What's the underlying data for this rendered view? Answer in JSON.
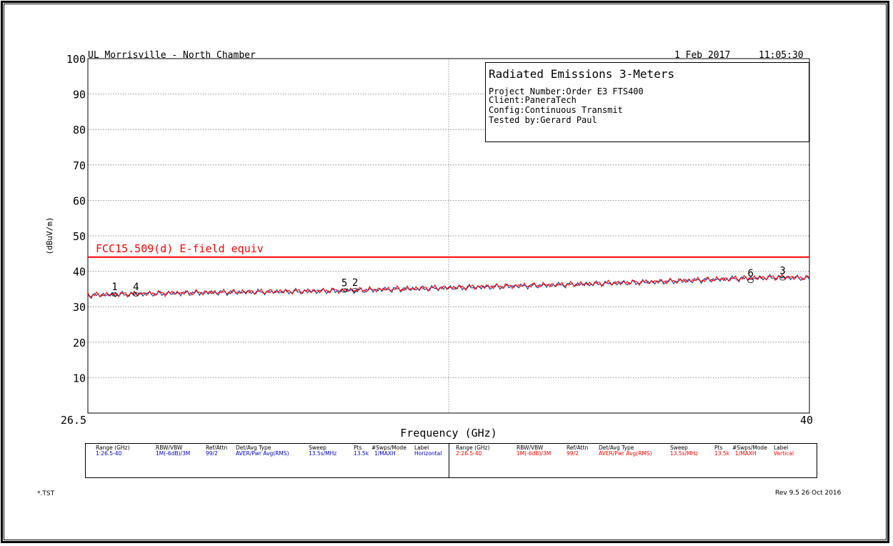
{
  "header": {
    "site": "UL Morrisville - North Chamber",
    "date": "1 Feb 2017",
    "time": "11:05:30"
  },
  "info_box": {
    "title": "Radiated Emissions 3-Meters",
    "project": "Project Number:Order E3 FTS400",
    "client": "Client:PaneraTech",
    "config": "Config:Continuous Transmit",
    "tested_by": "Tested by:Gerard Paul"
  },
  "chart_data": {
    "type": "line",
    "xlabel": "Frequency (GHz)",
    "ylabel": "(dBuV/m)",
    "xlim": [
      26.5,
      40
    ],
    "ylim": [
      0,
      100
    ],
    "x_tick_labels": [
      "26.5",
      "40"
    ],
    "y_ticks": [
      10,
      20,
      30,
      40,
      50,
      60,
      70,
      80,
      90,
      100
    ],
    "grid": true,
    "limit_line": {
      "label": "FCC15.509(d) E-field equiv",
      "value": 44,
      "color": "#ff0000"
    },
    "series": [
      {
        "color": "#1a3a9c",
        "x": [
          26.5,
          27.5,
          28.5,
          29.5,
          30.5,
          31.5,
          32.5,
          33.5,
          34.5,
          35.5,
          36.5,
          37.5,
          38.5,
          39.5,
          40
        ],
        "y": [
          33.2,
          33.6,
          33.9,
          34.1,
          34.3,
          34.6,
          35.0,
          35.4,
          35.8,
          36.2,
          36.7,
          37.2,
          37.8,
          38.3,
          38.0
        ]
      },
      {
        "color": "#ff0000",
        "x": [
          26.5,
          27.5,
          28.5,
          29.5,
          30.5,
          31.5,
          32.5,
          33.5,
          34.5,
          35.5,
          36.5,
          37.5,
          38.5,
          39.5,
          40
        ],
        "y": [
          33.3,
          33.7,
          34.0,
          34.2,
          34.4,
          34.7,
          35.1,
          35.5,
          35.9,
          36.3,
          36.8,
          37.3,
          37.9,
          38.4,
          38.1
        ]
      }
    ],
    "markers": [
      {
        "label": "1",
        "x": 27.0,
        "y": 33.5
      },
      {
        "label": "4",
        "x": 27.4,
        "y": 33.5
      },
      {
        "label": "5",
        "x": 31.3,
        "y": 34.6
      },
      {
        "label": "2",
        "x": 31.5,
        "y": 34.7
      },
      {
        "label": "6",
        "x": 38.9,
        "y": 37.3
      },
      {
        "label": "3",
        "x": 39.5,
        "y": 38.0
      }
    ]
  },
  "legend_table": {
    "headers": [
      "Range (GHz)",
      "RBW/VBW",
      "Ref/Attn",
      "Det/Avg Type",
      "Sweep",
      "Pts",
      "#Swps/Mode",
      "Label"
    ],
    "rows": [
      {
        "color": "#0000cc",
        "values": [
          "1:26.5-40",
          "1M(-6dB)/3M",
          "99/2",
          "AVER/Pwr Avg(RMS)",
          "13.5s/MHz",
          "13.5k",
          "1/MAXH",
          "Horizontal"
        ]
      },
      {
        "color": "#ff0000",
        "values": [
          "2:26.5-40",
          "1M(-6dB)/3M",
          "99/2",
          "AVER/Pwr Avg(RMS)",
          "13.5s/MHz",
          "13.5k",
          "1/MAXH",
          "Vertical"
        ]
      }
    ]
  },
  "footer": {
    "file": "*.TST",
    "revision": "Rev 9.5 26 Oct 2016"
  }
}
